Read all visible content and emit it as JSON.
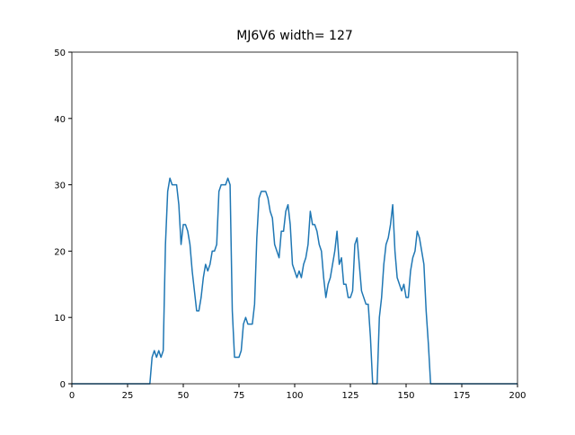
{
  "chart_data": {
    "type": "line",
    "title": "MJ6V6 width= 127",
    "x": [
      0,
      35,
      36,
      37,
      38,
      39,
      40,
      41,
      42,
      43,
      44,
      45,
      46,
      47,
      48,
      49,
      50,
      51,
      52,
      53,
      54,
      55,
      56,
      57,
      58,
      59,
      60,
      61,
      62,
      63,
      64,
      65,
      66,
      67,
      68,
      69,
      70,
      71,
      72,
      73,
      74,
      75,
      76,
      77,
      78,
      79,
      80,
      81,
      82,
      83,
      84,
      85,
      86,
      87,
      88,
      89,
      90,
      91,
      92,
      93,
      94,
      95,
      96,
      97,
      98,
      99,
      100,
      101,
      102,
      103,
      104,
      105,
      106,
      107,
      108,
      109,
      110,
      111,
      112,
      113,
      114,
      115,
      116,
      117,
      118,
      119,
      120,
      121,
      122,
      123,
      124,
      125,
      126,
      127,
      128,
      129,
      130,
      131,
      132,
      133,
      134,
      135,
      136,
      137,
      138,
      139,
      140,
      141,
      142,
      143,
      144,
      145,
      146,
      147,
      148,
      149,
      150,
      151,
      152,
      153,
      154,
      155,
      156,
      157,
      158,
      159,
      160,
      161,
      200
    ],
    "series": [
      {
        "color": "#1f77b4",
        "values": [
          0,
          0,
          4,
          5,
          4,
          5,
          4,
          5,
          21,
          29,
          31,
          30,
          30,
          30,
          27,
          21,
          24,
          24,
          23,
          21,
          17,
          14,
          11,
          11,
          13,
          16,
          18,
          17,
          18,
          20,
          20,
          21,
          29,
          30,
          30,
          30,
          31,
          30,
          11,
          4,
          4,
          4,
          5,
          9,
          10,
          9,
          9,
          9,
          12,
          22,
          28,
          29,
          29,
          29,
          28,
          26,
          25,
          21,
          20,
          19,
          23,
          23,
          26,
          27,
          24,
          18,
          17,
          16,
          17,
          16,
          18,
          19,
          21,
          26,
          24,
          24,
          23,
          21,
          20,
          16,
          13,
          15,
          16,
          18,
          20,
          23,
          18,
          19,
          15,
          15,
          13,
          13,
          14,
          21,
          22,
          18,
          14,
          13,
          12,
          12,
          7,
          0,
          0,
          0,
          10,
          13,
          18,
          21,
          22,
          24,
          27,
          20,
          16,
          15,
          14,
          15,
          13,
          13,
          17,
          19,
          20,
          23,
          22,
          20,
          18,
          11,
          6,
          0,
          0
        ]
      }
    ],
    "xlim": [
      0,
      200
    ],
    "xticks": [
      0,
      25,
      50,
      75,
      100,
      125,
      150,
      175,
      200
    ],
    "ylim": [
      0,
      50
    ],
    "yticks": [
      0,
      10,
      20,
      30,
      40,
      50
    ]
  }
}
